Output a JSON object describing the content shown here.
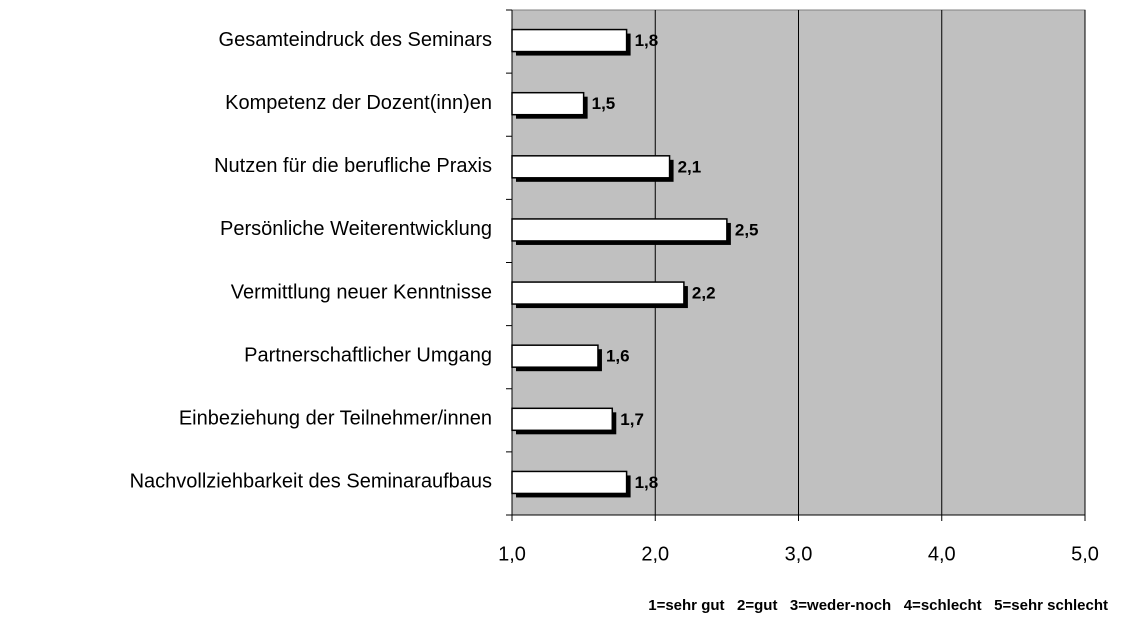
{
  "chart_data": {
    "type": "barh",
    "categories": [
      "Gesamteindruck des Seminars",
      "Kompetenz der Dozent(inn)en",
      "Nutzen für die berufliche Praxis",
      "Persönliche Weiterentwicklung",
      "Vermittlung neuer Kenntnisse",
      "Partnerschaftlicher Umgang",
      "Einbeziehung der Teilnehmer/innen",
      "Nachvollziehbarkeit des Seminaraufbaus"
    ],
    "values": [
      1.8,
      1.5,
      2.1,
      2.5,
      2.2,
      1.6,
      1.7,
      1.8
    ],
    "value_labels": [
      "1,8",
      "1,5",
      "2,1",
      "2,5",
      "2,2",
      "1,6",
      "1,7",
      "1,8"
    ],
    "color": "#ffffff",
    "xlim": [
      1,
      5
    ],
    "xticks": [
      {
        "value": 1,
        "label": "1,0"
      },
      {
        "value": 2,
        "label": "2,0"
      },
      {
        "value": 3,
        "label": "3,0"
      },
      {
        "value": 4,
        "label": "4,0"
      },
      {
        "value": 5,
        "label": "5,0"
      }
    ],
    "grid": true,
    "note": "1=sehr gut   2=gut   3=weder-noch   4=schlecht   5=sehr schlecht"
  }
}
